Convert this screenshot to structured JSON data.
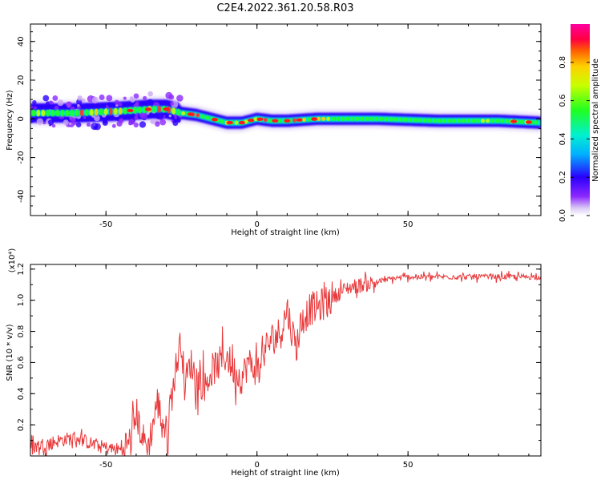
{
  "title": "C2E4.2022.361.20.58.R03",
  "chart_data": [
    {
      "type": "heatmap",
      "xlabel": "Height of straight line (km)",
      "ylabel": "Frequency (Hz)",
      "xlim": [
        -75,
        94
      ],
      "ylim": [
        -50,
        49
      ],
      "x_ticks": [
        -50,
        0,
        50
      ],
      "y_ticks": [
        -40,
        -20,
        0,
        20,
        40
      ],
      "colorbar": {
        "label": "Normalized spectral amplitude",
        "range": [
          0,
          1
        ],
        "ticks": [
          "0.0",
          "0.2",
          "0.4",
          "0.6",
          "0.8"
        ]
      },
      "ridge": {
        "x": [
          -75,
          -60,
          -45,
          -35,
          -30,
          -25,
          -20,
          -15,
          -10,
          -5,
          0,
          5,
          10,
          20,
          40,
          60,
          80,
          94
        ],
        "y": [
          3,
          3,
          4,
          5,
          5,
          3,
          2,
          0,
          -2,
          -2,
          0,
          -1,
          -1,
          0,
          0,
          -1,
          -1,
          -2
        ]
      }
    },
    {
      "type": "line",
      "xlabel": "Height of straight line (km)",
      "ylabel": "SNR (10 * v/v)",
      "multiplier": "(x10⁴)",
      "xlim": [
        -75,
        94
      ],
      "ylim": [
        0,
        1.23
      ],
      "x_ticks": [
        -50,
        0,
        50
      ],
      "y_ticks": [
        "0.2",
        "0.4",
        "0.6",
        "0.8",
        "1.0",
        "1.2"
      ],
      "series": [
        {
          "color": "#e8383a",
          "x": [
            -75,
            -70,
            -65,
            -60,
            -55,
            -50,
            -45,
            -42,
            -40,
            -38,
            -36,
            -33,
            -30,
            -27,
            -25,
            -24,
            -22,
            -20,
            -17,
            -15,
            -12,
            -10,
            -8,
            -5,
            -3,
            0,
            3,
            5,
            8,
            10,
            11,
            13,
            15,
            18,
            20,
            25,
            30,
            35,
            40,
            45,
            50,
            60,
            70,
            80,
            94
          ],
          "y": [
            0.05,
            0.08,
            0.1,
            0.12,
            0.08,
            0.05,
            0.04,
            0.1,
            0.28,
            0.12,
            0.05,
            0.35,
            0.15,
            0.55,
            0.75,
            0.45,
            0.6,
            0.5,
            0.45,
            0.55,
            0.6,
            0.65,
            0.55,
            0.5,
            0.6,
            0.55,
            0.7,
            0.75,
            0.8,
            0.95,
            0.85,
            0.7,
            0.88,
            0.95,
            0.95,
            1.02,
            1.08,
            1.1,
            1.12,
            1.14,
            1.15,
            1.15,
            1.15,
            1.15,
            1.15
          ]
        }
      ]
    }
  ]
}
